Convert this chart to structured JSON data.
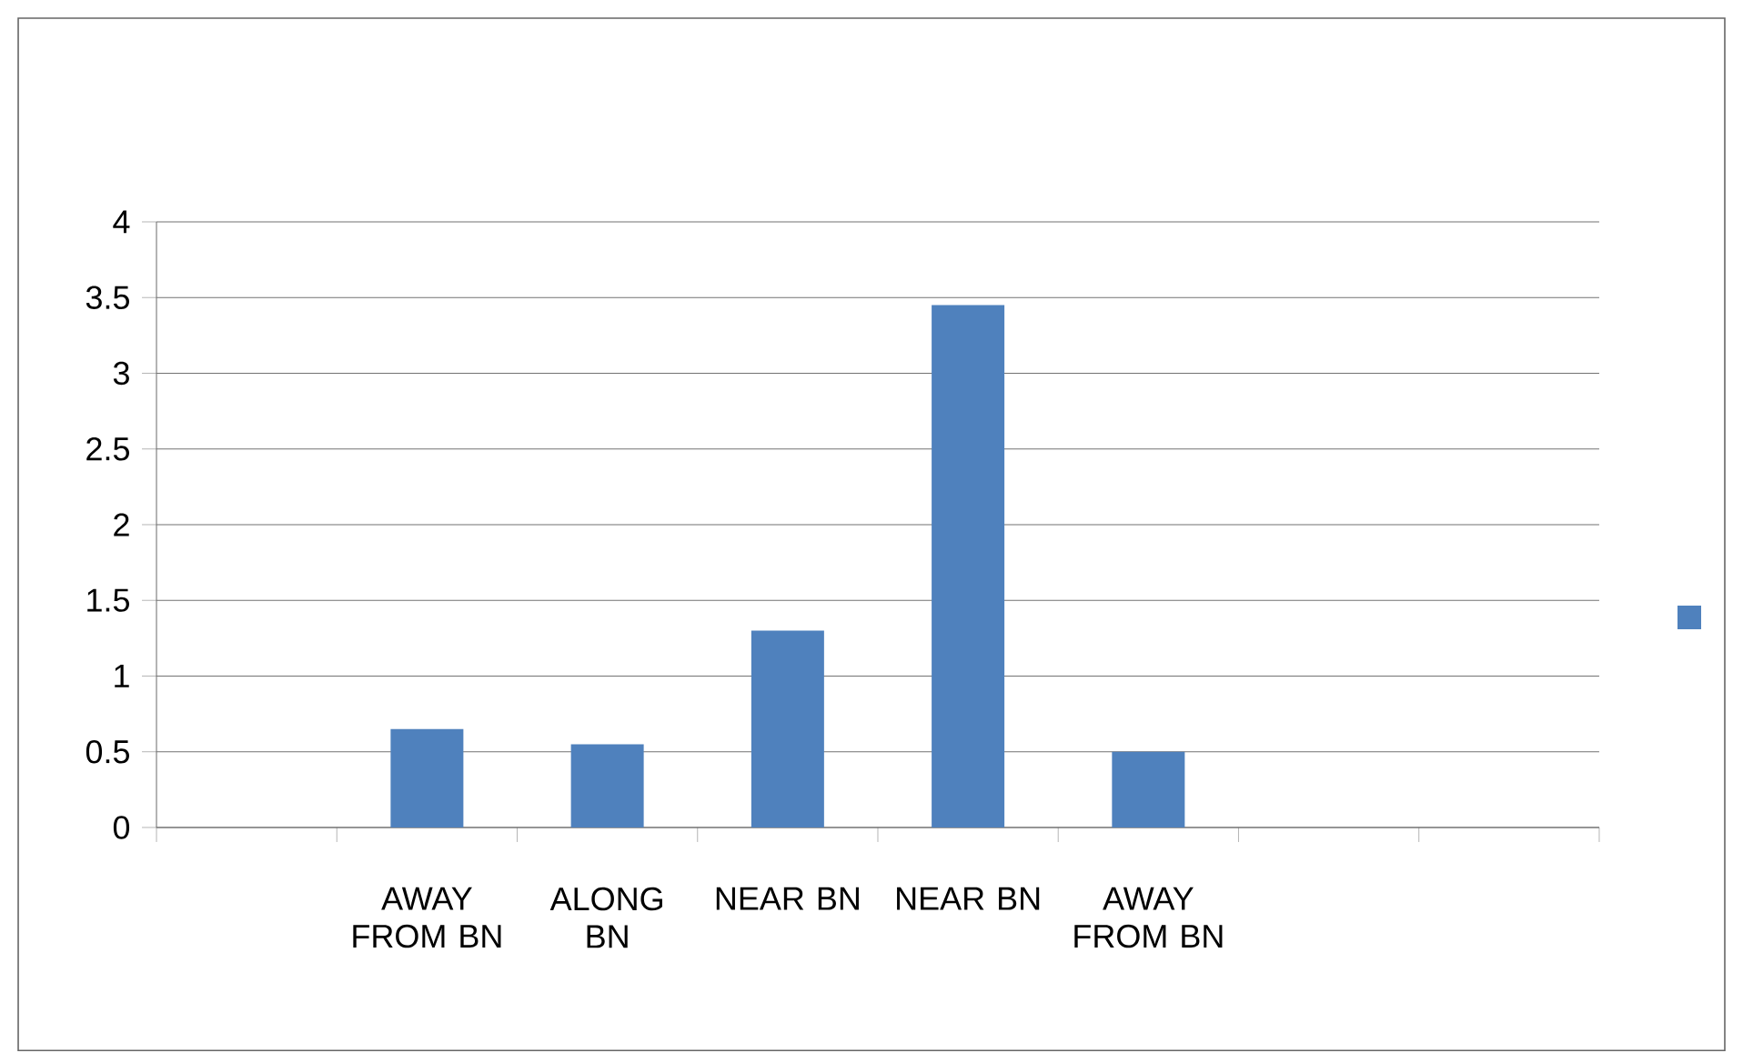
{
  "chart_data": {
    "type": "bar",
    "categories": [
      null,
      "AWAY FROM BN",
      "ALONG BN",
      "NEAR BN",
      "NEAR BN",
      "AWAY FROM BN",
      null,
      null
    ],
    "series": [
      {
        "color": "#4f81bd",
        "values": [
          null,
          0.65,
          0.55,
          1.3,
          3.45,
          0.5,
          null,
          null
        ]
      }
    ],
    "ylim": [
      0,
      4
    ],
    "yticks": [
      0,
      0.5,
      1,
      1.5,
      2,
      2.5,
      3,
      3.5,
      4
    ],
    "grid": "y"
  }
}
